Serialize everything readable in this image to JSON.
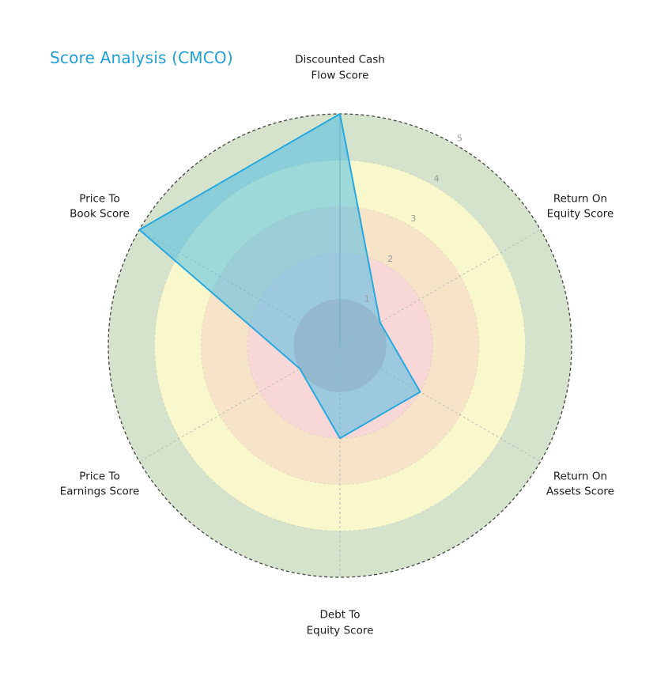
{
  "title": "Score Analysis (CMCO)",
  "chart_data": {
    "type": "radar",
    "title": "Score Analysis (CMCO)",
    "categories": [
      "Discounted Cash\nFlow Score",
      "Return On\nEquity Score",
      "Return On\nAssets Score",
      "Debt To\nEquity Score",
      "Price To\nEarnings Score",
      "Price To\nBook Score"
    ],
    "values": [
      5,
      1,
      2,
      2,
      1,
      5
    ],
    "rmax": 5,
    "radial_ticks": [
      "1",
      "2",
      "3",
      "4",
      "5"
    ],
    "ring_colors": [
      "#e7b8b6",
      "#f8d8d6",
      "#f6e3c8",
      "#f9f8cd",
      "#d5e3cd"
    ],
    "series_fill": "#41b9e6",
    "series_fill_opacity": 0.5,
    "series_stroke": "#27a9df",
    "outer_edge_color": "#454545",
    "spoke_color": "#b8b8b8",
    "grid_circle_color": "rgba(0,0,0,0.07)",
    "tick_label_color": "#9a9a9a",
    "title_color": "#1f9fd8",
    "label_color": "#1a1a1a",
    "legend": "none",
    "grid": "on"
  }
}
